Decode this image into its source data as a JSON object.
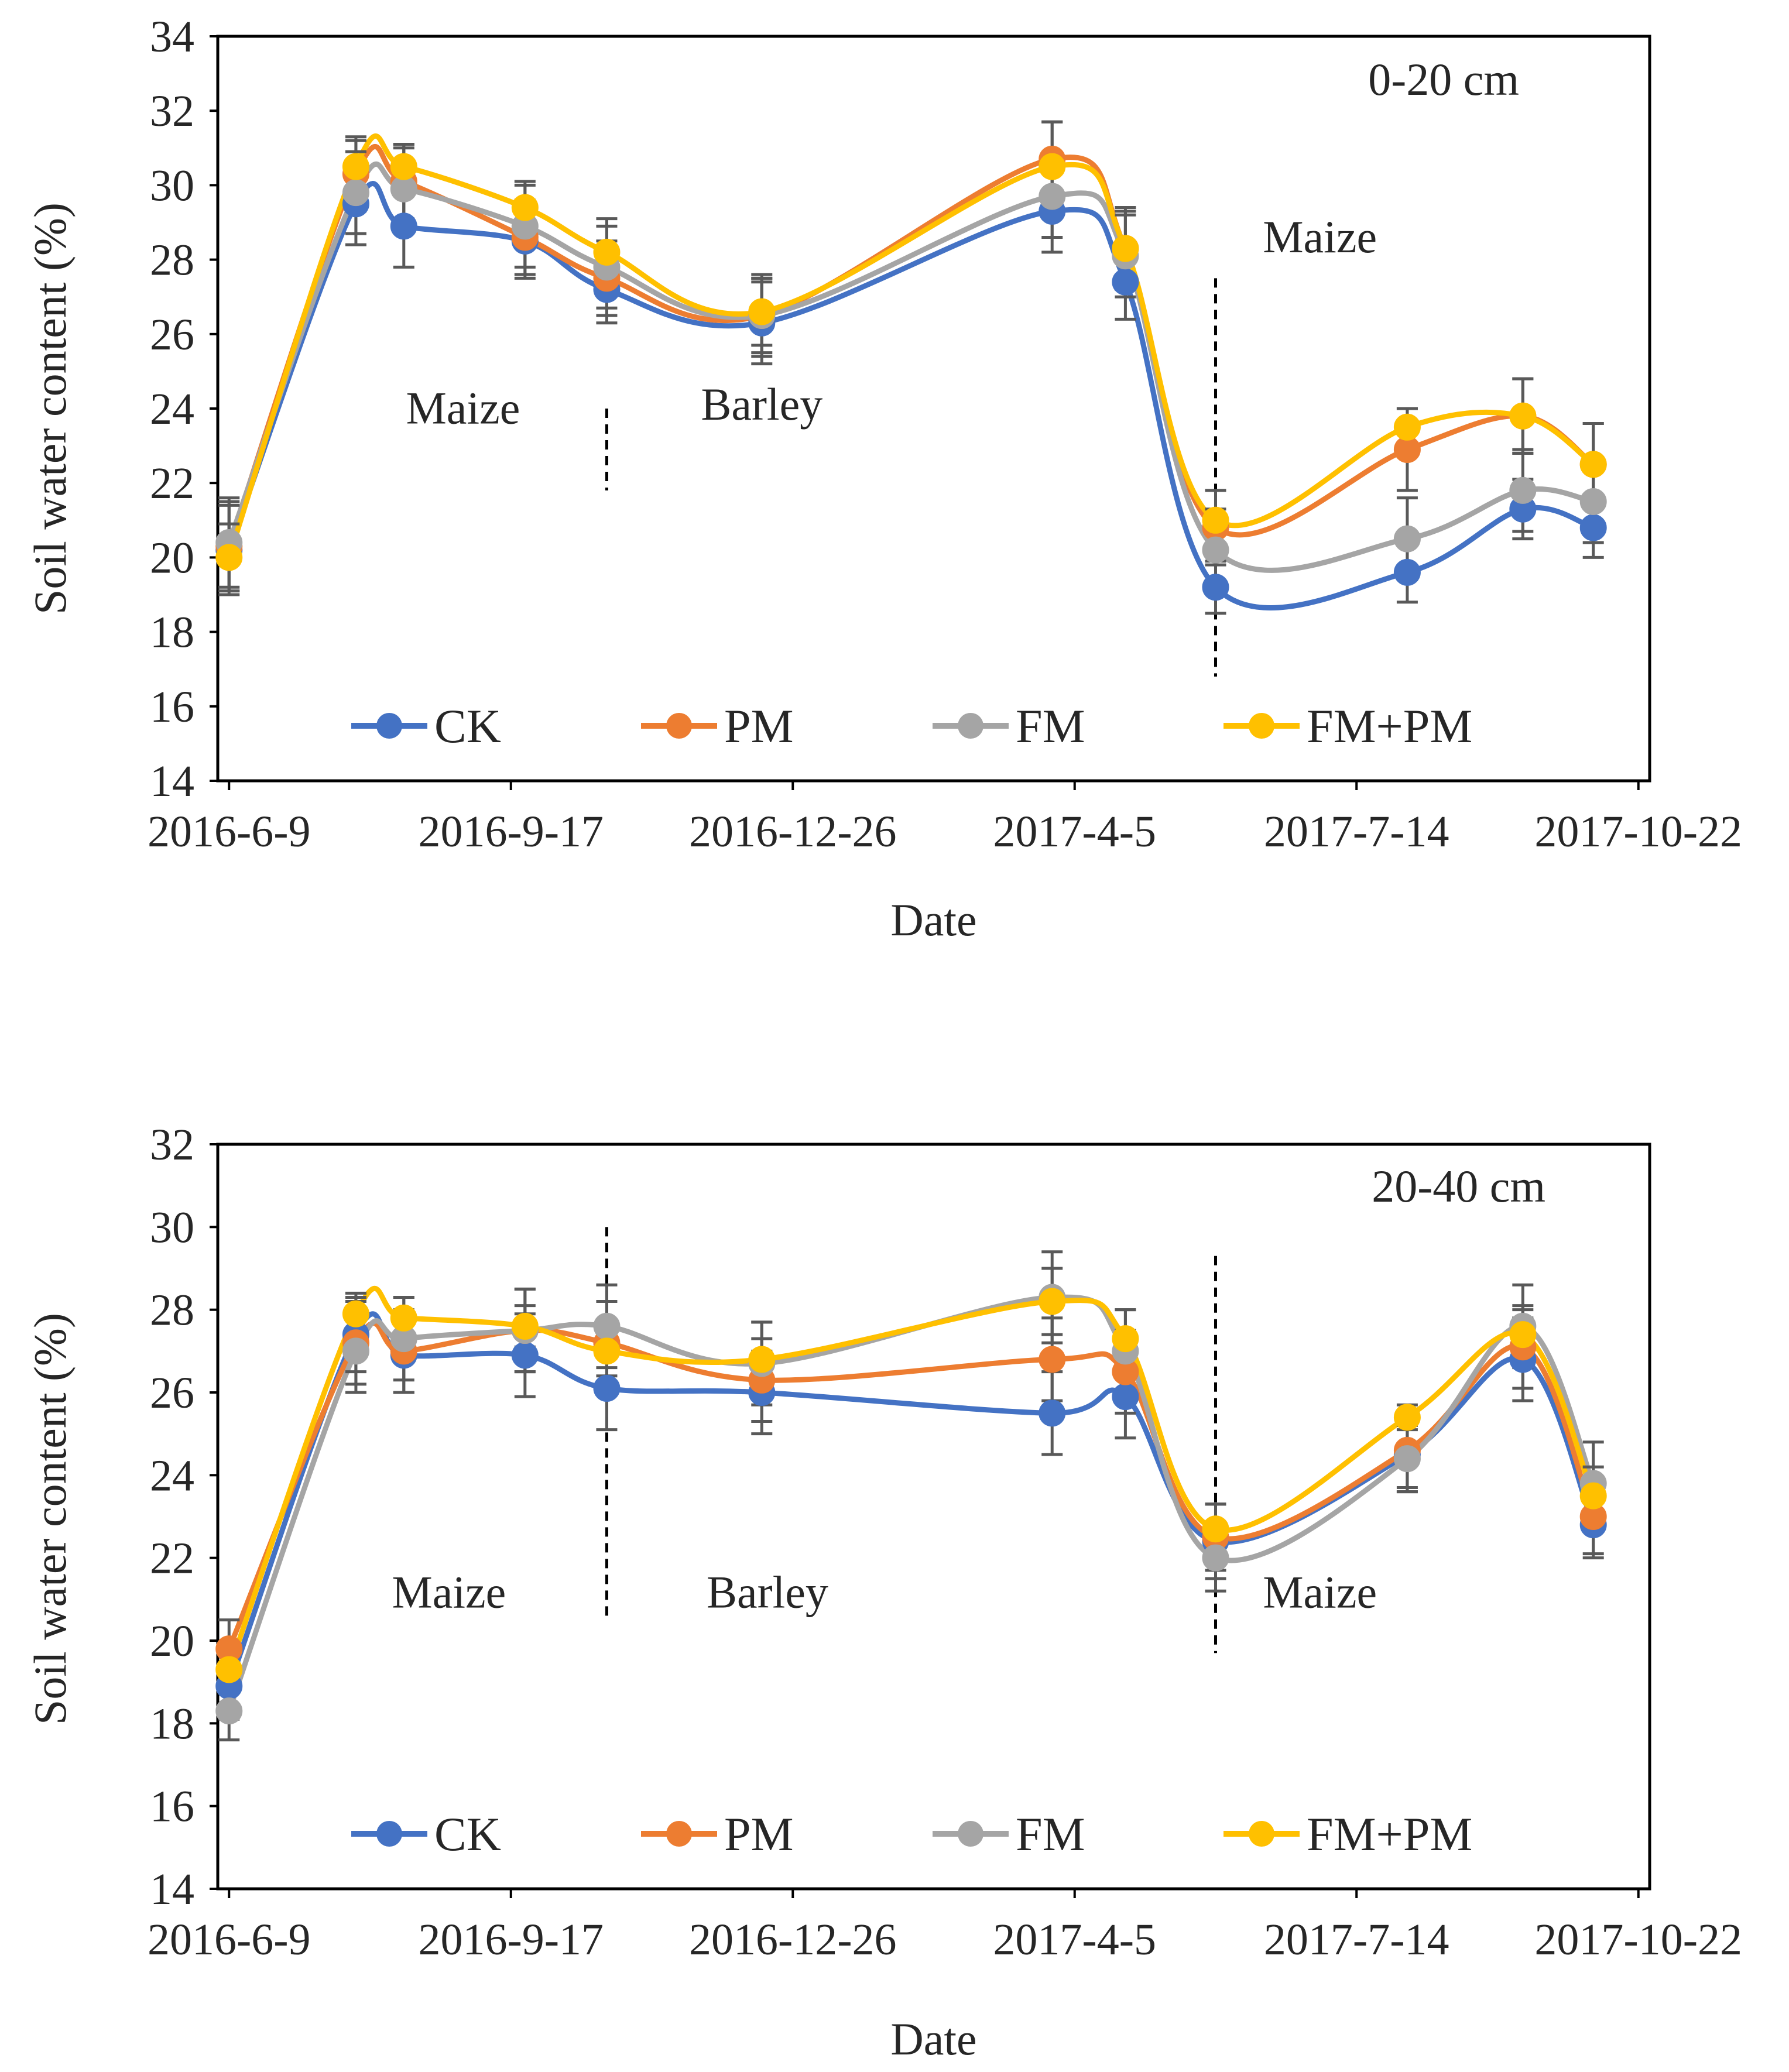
{
  "chart_data": [
    {
      "type": "line",
      "title": "0-20 cm",
      "xlabel": "Date",
      "ylabel": "Soil water content (%)",
      "ylim": [
        14,
        34
      ],
      "y_ticks": [
        14,
        16,
        18,
        20,
        22,
        24,
        26,
        28,
        30,
        32,
        34
      ],
      "x_range": [
        "2016-6-5",
        "2017-10-26"
      ],
      "x_ticks": [
        "2016-6-9",
        "2016-9-17",
        "2016-12-26",
        "2017-4-5",
        "2017-7-14",
        "2017-10-22"
      ],
      "legend_position": "bottom",
      "x": [
        "2016-6-9",
        "2016-7-24",
        "2016-8-10",
        "2016-9-22",
        "2016-10-21",
        "2016-12-15",
        "2017-3-28",
        "2017-4-23",
        "2017-5-25",
        "2017-8-1",
        "2017-9-11",
        "2017-10-6"
      ],
      "series": [
        {
          "name": "CK",
          "color": "#4472C4",
          "values": [
            20.2,
            29.5,
            28.9,
            28.5,
            27.2,
            26.3,
            29.3,
            27.4,
            19.2,
            19.6,
            21.3,
            20.8
          ],
          "errors": [
            1.2,
            1.1,
            1.1,
            1.0,
            0.9,
            1.1,
            1.1,
            1.0,
            0.7,
            0.8,
            0.8,
            0.8
          ]
        },
        {
          "name": "PM",
          "color": "#ED7D31",
          "values": [
            20.3,
            30.3,
            30.1,
            28.6,
            27.5,
            26.5,
            30.7,
            28.3,
            20.8,
            22.9,
            23.8,
            22.5
          ],
          "errors": [
            1.2,
            1.0,
            1.0,
            1.0,
            1.0,
            1.0,
            1.0,
            1.0,
            1.0,
            1.1,
            1.0,
            1.1
          ]
        },
        {
          "name": "FM",
          "color": "#A5A5A5",
          "values": [
            20.4,
            29.8,
            29.9,
            28.9,
            27.8,
            26.5,
            29.7,
            28.1,
            20.2,
            20.5,
            21.8,
            21.5
          ],
          "errors": [
            1.2,
            1.1,
            1.1,
            1.1,
            1.1,
            1.1,
            1.1,
            1.1,
            1.1,
            1.1,
            1.1,
            1.1
          ]
        },
        {
          "name": "FM+PM",
          "color": "#FFC000",
          "values": [
            20.0,
            30.5,
            30.5,
            29.4,
            28.2,
            26.6,
            30.5,
            28.3,
            21.0,
            23.5,
            23.8,
            22.5
          ],
          "errors": [
            0.9,
            0.7,
            0.6,
            0.7,
            0.9,
            0.9,
            1.2,
            1.1,
            0.8,
            0.5,
            1.0,
            1.1
          ]
        }
      ],
      "dividers": [
        "2016-10-21",
        "2017-5-25"
      ],
      "annotations": [
        {
          "text": "Maize",
          "x": "2016-8-31",
          "y": 23.6
        },
        {
          "text": "Barley",
          "x": "2016-12-15",
          "y": 23.7
        },
        {
          "text": "Maize",
          "x": "2017-7-1",
          "y": 28.2
        }
      ]
    },
    {
      "type": "line",
      "title": "20-40 cm",
      "xlabel": "Date",
      "ylabel": "Soil water content (%)",
      "ylim": [
        14,
        32
      ],
      "y_ticks": [
        14,
        16,
        18,
        20,
        22,
        24,
        26,
        28,
        30,
        32
      ],
      "x_range": [
        "2016-6-5",
        "2017-10-26"
      ],
      "x_ticks": [
        "2016-6-9",
        "2016-9-17",
        "2016-12-26",
        "2017-4-5",
        "2017-7-14",
        "2017-10-22"
      ],
      "legend_position": "bottom",
      "x": [
        "2016-6-9",
        "2016-7-24",
        "2016-8-10",
        "2016-9-22",
        "2016-10-21",
        "2016-12-15",
        "2017-3-28",
        "2017-4-23",
        "2017-5-25",
        "2017-8-1",
        "2017-9-11",
        "2017-10-6"
      ],
      "series": [
        {
          "name": "CK",
          "color": "#4472C4",
          "values": [
            18.9,
            27.4,
            26.9,
            26.9,
            26.1,
            26.0,
            25.5,
            25.9,
            22.4,
            24.5,
            26.8,
            22.8
          ],
          "errors": [
            0.8,
            0.9,
            0.9,
            1.0,
            1.0,
            1.0,
            1.0,
            1.0,
            0.9,
            0.9,
            1.0,
            0.8
          ]
        },
        {
          "name": "PM",
          "color": "#ED7D31",
          "values": [
            19.8,
            27.2,
            27.0,
            27.5,
            27.2,
            26.3,
            26.8,
            26.5,
            22.5,
            24.6,
            27.1,
            23.0
          ],
          "errors": [
            0.7,
            1.0,
            1.0,
            1.0,
            1.0,
            1.0,
            1.0,
            1.0,
            0.8,
            0.9,
            1.0,
            0.9
          ]
        },
        {
          "name": "FM",
          "color": "#A5A5A5",
          "values": [
            18.3,
            27.0,
            27.3,
            27.5,
            27.6,
            26.7,
            28.3,
            27.0,
            22.0,
            24.4,
            27.6,
            23.8
          ],
          "errors": [
            0.7,
            1.0,
            1.0,
            1.0,
            1.0,
            1.0,
            1.1,
            1.0,
            0.8,
            0.8,
            1.0,
            1.0
          ]
        },
        {
          "name": "FM+PM",
          "color": "#FFC000",
          "values": [
            19.3,
            27.9,
            27.8,
            27.6,
            27.0,
            26.8,
            28.2,
            27.3,
            22.7,
            25.4,
            27.4,
            23.5
          ],
          "errors": [
            0.4,
            0.5,
            0.5,
            0.5,
            0.6,
            0.9,
            0.8,
            0.7,
            0.6,
            0.3,
            0.6,
            0.7
          ]
        }
      ],
      "dividers": [
        "2016-10-21",
        "2017-5-25"
      ],
      "annotations": [
        {
          "text": "Maize",
          "x": "2016-8-26",
          "y": 20.8
        },
        {
          "text": "Barley",
          "x": "2016-12-17",
          "y": 20.8
        },
        {
          "text": "Maize",
          "x": "2017-7-1",
          "y": 20.8
        }
      ]
    }
  ]
}
